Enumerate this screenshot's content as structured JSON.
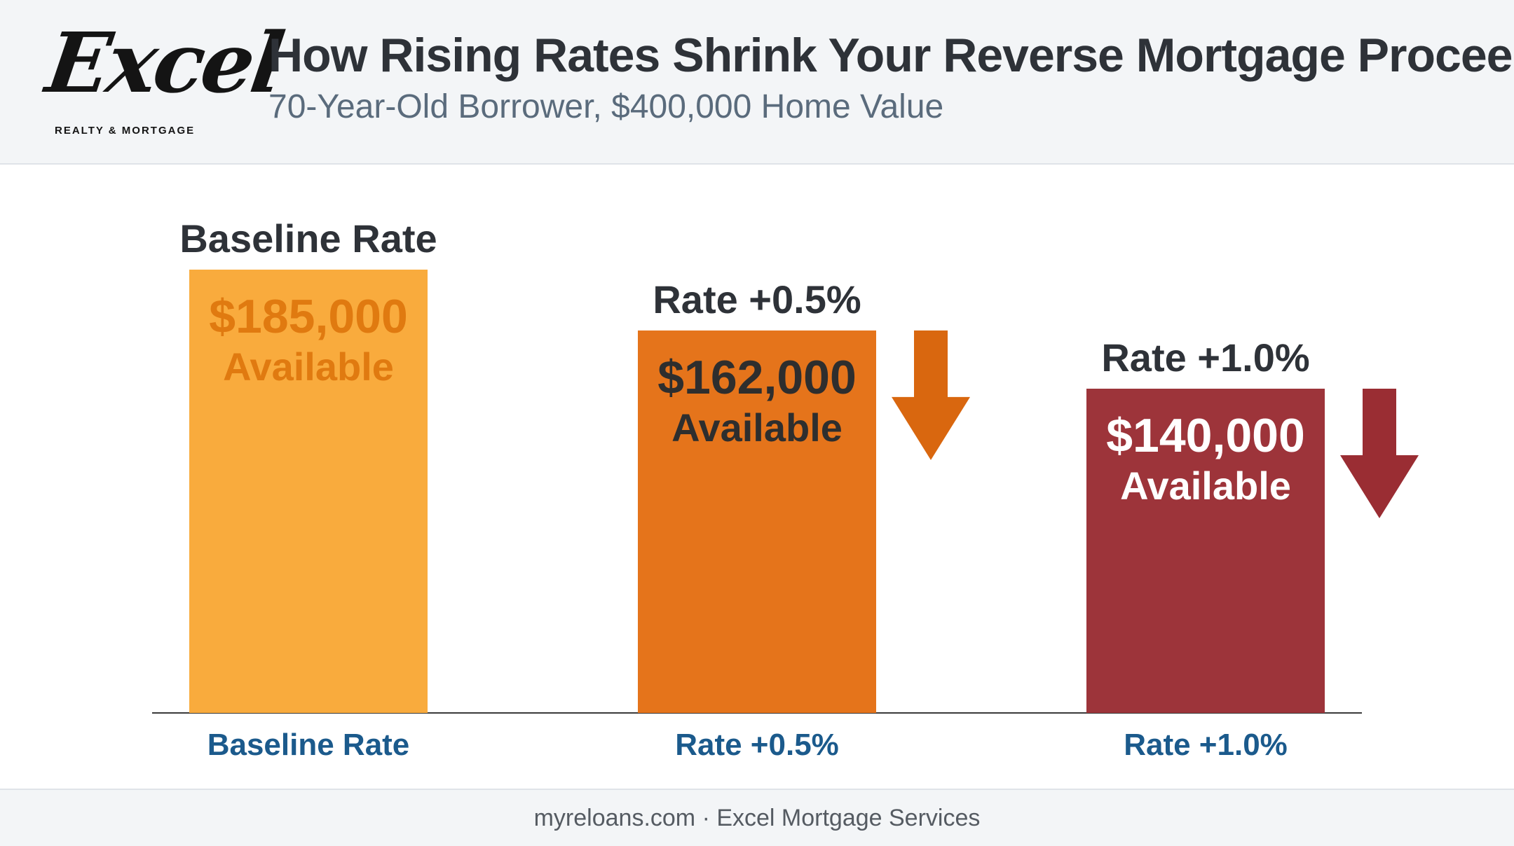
{
  "header": {
    "logo_script": "Excel",
    "logo_sub": "REALTY & MORTGAGE",
    "title": "How Rising Rates Shrink Your Reverse Mortgage Proceeds",
    "subtitle": "70-Year-Old Borrower, $400,000 Home Value"
  },
  "chart_data": {
    "type": "bar",
    "categories": [
      "Baseline Rate",
      "Rate +0.5%",
      "Rate +1.0%"
    ],
    "values": [
      185000,
      162000,
      140000
    ],
    "value_labels": [
      "$185,000",
      "$162,000",
      "$140,000"
    ],
    "value_suffix": "Available",
    "top_labels": [
      "Baseline Rate",
      "Rate +0.5%",
      "Rate +1.0%"
    ],
    "ylim": [
      0,
      185000
    ],
    "colors": [
      "#f9ab3d",
      "#e5741b",
      "#9d343a"
    ],
    "value_label_colors": [
      "#e07a10",
      "#2e2e2e",
      "#ffffff"
    ],
    "arrow_colors": [
      "",
      "#d9670f",
      "#9a2d33"
    ],
    "category_label_color": "#1b5a8c",
    "grid": false,
    "legend": "none"
  },
  "footer": {
    "text": "myreloans.com · Excel Mortgage Services"
  }
}
